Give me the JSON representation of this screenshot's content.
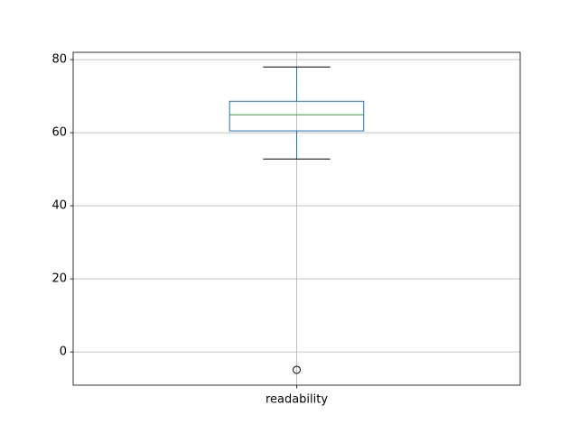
{
  "chart_data": {
    "type": "box",
    "categories": [
      "readability"
    ],
    "boxes": [
      {
        "whislo": 52.8,
        "q1": 60.5,
        "med": 64.9,
        "q3": 68.6,
        "whishi": 78,
        "fliers": [
          -4.9
        ]
      }
    ],
    "box_color": "#1f77b4",
    "median_color": "#2ca02c",
    "cap_color": "#000000",
    "ylim": [
      -9.1,
      82
    ],
    "yticks": [
      0,
      20,
      40,
      60,
      80
    ],
    "grid": true
  }
}
